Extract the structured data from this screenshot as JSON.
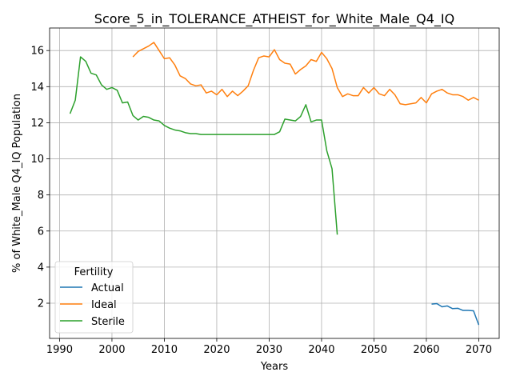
{
  "chart_data": {
    "type": "line",
    "title": "Score_5_in_TOLERANCE_ATHEIST_for_White_Male_Q4_IQ",
    "xlabel": "Years",
    "ylabel": "% of White_Male Q4_IQ Population",
    "xlim": [
      1988.1,
      2073.9
    ],
    "ylim": [
      0.05,
      17.25
    ],
    "xticks": [
      1990,
      2000,
      2010,
      2020,
      2030,
      2040,
      2050,
      2060,
      2070
    ],
    "yticks": [
      2,
      4,
      6,
      8,
      10,
      12,
      14,
      16
    ],
    "grid": true,
    "legend": {
      "title": "Fertility",
      "placement": "lower-left"
    },
    "series": [
      {
        "name": "Actual",
        "color": "#1f77b4",
        "x": [
          2061,
          2062,
          2063,
          2064,
          2065,
          2066,
          2067,
          2068,
          2069,
          2070
        ],
        "y": [
          1.95,
          1.98,
          1.8,
          1.85,
          1.7,
          1.72,
          1.6,
          1.6,
          1.58,
          0.8
        ]
      },
      {
        "name": "Ideal",
        "color": "#ff7f0e",
        "x": [
          2004,
          2005,
          2006,
          2007,
          2008,
          2009,
          2010,
          2011,
          2012,
          2013,
          2014,
          2015,
          2016,
          2017,
          2018,
          2019,
          2020,
          2021,
          2022,
          2023,
          2024,
          2025,
          2026,
          2027,
          2028,
          2029,
          2030,
          2031,
          2032,
          2033,
          2034,
          2035,
          2036,
          2037,
          2038,
          2039,
          2040,
          2041,
          2042,
          2043,
          2044,
          2045,
          2046,
          2047,
          2048,
          2049,
          2050,
          2051,
          2052,
          2053,
          2054,
          2055,
          2056,
          2057,
          2058,
          2059,
          2060,
          2061,
          2062,
          2063,
          2064,
          2065,
          2066,
          2067,
          2068,
          2069,
          2070
        ],
        "y": [
          15.65,
          15.95,
          16.1,
          16.25,
          16.45,
          16.0,
          15.55,
          15.6,
          15.2,
          14.6,
          14.45,
          14.15,
          14.05,
          14.1,
          13.65,
          13.75,
          13.55,
          13.85,
          13.45,
          13.75,
          13.5,
          13.75,
          14.05,
          14.9,
          15.6,
          15.7,
          15.65,
          16.05,
          15.5,
          15.3,
          15.25,
          14.7,
          14.95,
          15.15,
          15.5,
          15.4,
          15.9,
          15.55,
          15.0,
          13.95,
          13.45,
          13.6,
          13.5,
          13.5,
          13.95,
          13.65,
          13.95,
          13.6,
          13.5,
          13.85,
          13.55,
          13.05,
          13.0,
          13.05,
          13.1,
          13.4,
          13.1,
          13.6,
          13.75,
          13.85,
          13.65,
          13.55,
          13.55,
          13.45,
          13.25,
          13.4,
          13.25
        ]
      },
      {
        "name": "Sterile",
        "color": "#2ca02c",
        "x": [
          1992,
          1993,
          1994,
          1995,
          1996,
          1997,
          1998,
          1999,
          2000,
          2001,
          2002,
          2003,
          2004,
          2005,
          2006,
          2007,
          2008,
          2009,
          2010,
          2011,
          2012,
          2013,
          2014,
          2015,
          2016,
          2017,
          2018,
          2019,
          2020,
          2021,
          2022,
          2023,
          2024,
          2025,
          2026,
          2027,
          2028,
          2029,
          2030,
          2031,
          2032,
          2033,
          2034,
          2035,
          2036,
          2037,
          2038,
          2039,
          2040,
          2041,
          2042,
          2043
        ],
        "y": [
          12.5,
          13.25,
          15.65,
          15.4,
          14.75,
          14.65,
          14.1,
          13.85,
          13.95,
          13.8,
          13.1,
          13.15,
          12.4,
          12.15,
          12.35,
          12.3,
          12.15,
          12.1,
          11.85,
          11.7,
          11.6,
          11.55,
          11.45,
          11.4,
          11.4,
          11.35,
          11.35,
          11.35,
          11.35,
          11.35,
          11.35,
          11.35,
          11.35,
          11.35,
          11.35,
          11.35,
          11.35,
          11.35,
          11.35,
          11.35,
          11.5,
          12.2,
          12.15,
          12.1,
          12.35,
          13.0,
          12.05,
          12.15,
          12.15,
          10.45,
          9.45,
          5.8
        ]
      }
    ]
  }
}
